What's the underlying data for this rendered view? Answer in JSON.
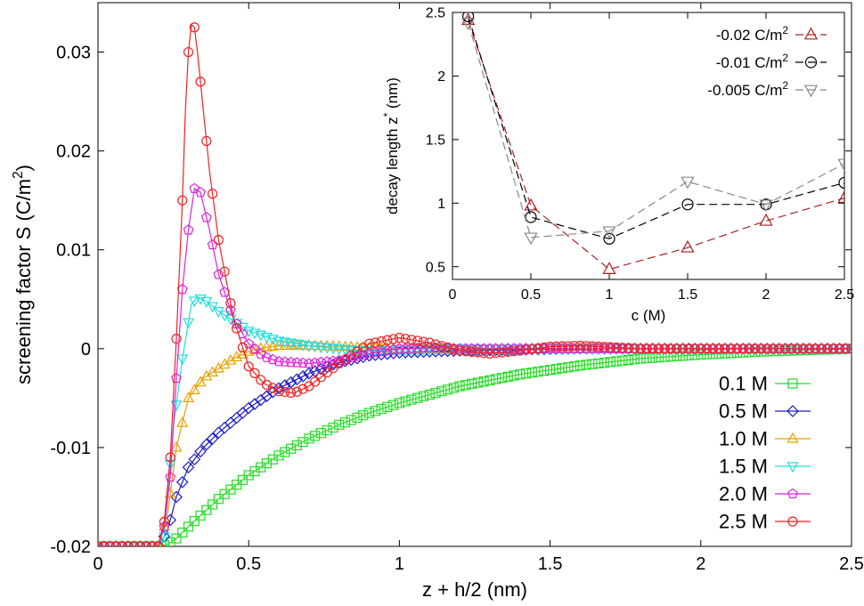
{
  "chart_data": [
    {
      "type": "line",
      "xlabel": "z + h/2 (nm)",
      "ylabel_main": "screening factor S (C/m",
      "ylabel_sup": "2",
      "ylabel_tail": ")",
      "xlim": [
        0,
        2.5
      ],
      "ylim": [
        -0.02,
        0.035
      ],
      "xticks": [
        0,
        0.5,
        1,
        1.5,
        2,
        2.5
      ],
      "xtick_labels": [
        "0",
        "0.5",
        "1",
        "1.5",
        "2",
        "2.5"
      ],
      "yticks": [
        -0.02,
        -0.01,
        0,
        0.01,
        0.02,
        0.03
      ],
      "ytick_labels": [
        "-0.02",
        "-0.01",
        "0",
        "0.01",
        "0.02",
        "0.03"
      ],
      "legend_position": "bottom-right",
      "series": [
        {
          "name": "0.1 M",
          "color": "#22dd22",
          "marker": "square",
          "x": [
            0,
            0.2,
            0.23,
            0.26,
            0.3,
            0.35,
            0.4,
            0.5,
            0.6,
            0.7,
            0.8,
            0.9,
            1.0,
            1.2,
            1.4,
            1.6,
            1.8,
            2.0,
            2.2,
            2.5
          ],
          "y": [
            -0.02,
            -0.02,
            -0.0198,
            -0.0192,
            -0.018,
            -0.0166,
            -0.0152,
            -0.0128,
            -0.0108,
            -0.0091,
            -0.0077,
            -0.0065,
            -0.0055,
            -0.0038,
            -0.0026,
            -0.0017,
            -0.001,
            -0.0006,
            -0.0003,
            0.0
          ]
        },
        {
          "name": "0.5 M",
          "color": "#1a1acc",
          "marker": "diamond",
          "x": [
            0,
            0.2,
            0.23,
            0.26,
            0.3,
            0.35,
            0.4,
            0.5,
            0.6,
            0.7,
            0.8,
            0.9,
            1.0,
            1.2,
            1.4,
            1.6,
            1.8,
            2.0,
            2.5
          ],
          "y": [
            -0.02,
            -0.02,
            -0.0185,
            -0.015,
            -0.012,
            -0.01,
            -0.0085,
            -0.006,
            -0.004,
            -0.0025,
            -0.0014,
            -0.0007,
            -0.0004,
            -0.0002,
            -0.0001,
            0.0,
            0.0,
            0.0,
            0.0
          ]
        },
        {
          "name": "1.0 M",
          "color": "#e8a000",
          "marker": "triangle-up",
          "x": [
            0,
            0.2,
            0.23,
            0.26,
            0.3,
            0.35,
            0.4,
            0.45,
            0.5,
            0.55,
            0.6,
            0.7,
            0.8,
            0.9,
            1.0,
            1.2,
            1.4,
            1.6,
            2.0,
            2.5
          ],
          "y": [
            -0.02,
            -0.02,
            -0.017,
            -0.01,
            -0.005,
            -0.003,
            -0.002,
            -0.001,
            -0.0003,
            0.0001,
            0.0003,
            0.0003,
            0.0002,
            0.0001,
            0.0,
            -0.0001,
            0.0,
            0.0,
            0.0,
            0.0
          ]
        },
        {
          "name": "1.5 M",
          "color": "#22dddd",
          "marker": "triangle-down",
          "x": [
            0,
            0.2,
            0.22,
            0.25,
            0.28,
            0.31,
            0.33,
            0.36,
            0.4,
            0.45,
            0.5,
            0.6,
            0.7,
            0.8,
            0.9,
            1.0,
            1.2,
            1.5,
            2.0,
            2.5
          ],
          "y": [
            -0.02,
            -0.02,
            -0.019,
            -0.008,
            -0.001,
            0.0045,
            0.0052,
            0.0048,
            0.0038,
            0.0028,
            0.0018,
            0.0008,
            0.0003,
            0.0,
            -0.0002,
            -0.0001,
            0.0,
            0.0,
            0.0,
            0.0
          ]
        },
        {
          "name": "2.0 M",
          "color": "#dd22dd",
          "marker": "pentagon",
          "x": [
            0,
            0.2,
            0.22,
            0.24,
            0.26,
            0.28,
            0.3,
            0.32,
            0.34,
            0.37,
            0.4,
            0.45,
            0.5,
            0.55,
            0.6,
            0.7,
            0.8,
            0.9,
            1.0,
            1.1,
            1.2,
            1.4,
            1.6,
            1.8,
            2.0,
            2.5
          ],
          "y": [
            -0.02,
            -0.02,
            -0.018,
            -0.013,
            -0.003,
            0.006,
            0.012,
            0.0162,
            0.0158,
            0.012,
            0.0075,
            0.003,
            0.0005,
            -0.0008,
            -0.0013,
            -0.0015,
            -0.0012,
            -0.0005,
            0.0,
            0.0001,
            0.0,
            0.0,
            0.0,
            0.0,
            0.0,
            0.0
          ]
        },
        {
          "name": "2.5 M",
          "color": "#ee2222",
          "marker": "circle",
          "x": [
            0,
            0.2,
            0.22,
            0.24,
            0.26,
            0.28,
            0.29,
            0.3,
            0.31,
            0.32,
            0.33,
            0.35,
            0.37,
            0.4,
            0.45,
            0.5,
            0.55,
            0.6,
            0.65,
            0.7,
            0.8,
            0.9,
            1.0,
            1.1,
            1.2,
            1.3,
            1.4,
            1.5,
            1.6,
            1.8,
            2.0,
            2.2,
            2.5
          ],
          "y": [
            -0.02,
            -0.02,
            -0.0175,
            -0.011,
            0.001,
            0.015,
            0.024,
            0.03,
            0.0328,
            0.0325,
            0.03,
            0.024,
            0.018,
            0.011,
            0.003,
            -0.0018,
            -0.0035,
            -0.0043,
            -0.0045,
            -0.0038,
            -0.0015,
            0.0005,
            0.0011,
            0.0006,
            -0.0002,
            -0.0005,
            -0.0002,
            0.0002,
            0.0003,
            0.0,
            0.0,
            0.0,
            0.0
          ]
        }
      ]
    },
    {
      "type": "line",
      "inset": true,
      "xlabel": "c (M)",
      "ylabel_main": "decay length z",
      "ylabel_sup": "*",
      "ylabel_tail": " (nm)",
      "xlim": [
        0,
        2.5
      ],
      "ylim": [
        0.4,
        2.5
      ],
      "xticks": [
        0,
        0.5,
        1,
        1.5,
        2,
        2.5
      ],
      "xtick_labels": [
        "0",
        "0.5",
        "1",
        "1.5",
        "2",
        "2.5"
      ],
      "yticks": [
        0.5,
        1,
        1.5,
        2,
        2.5
      ],
      "ytick_labels": [
        "0.5",
        "1",
        "1.5",
        "2",
        "2.5"
      ],
      "legend_position": "top-right",
      "series": [
        {
          "name": "-0.02 C/m",
          "sup": "2",
          "color": "#aa2222",
          "marker": "triangle-up",
          "x": [
            0.1,
            0.5,
            1.0,
            1.5,
            2.0,
            2.5
          ],
          "y": [
            2.44,
            0.98,
            0.48,
            0.65,
            0.86,
            1.04
          ]
        },
        {
          "name": "-0.01 C/m",
          "sup": "2",
          "color": "#000000",
          "marker": "circle",
          "x": [
            0.1,
            0.5,
            1.0,
            1.5,
            2.0,
            2.5
          ],
          "y": [
            2.47,
            0.89,
            0.72,
            0.99,
            0.99,
            1.16
          ]
        },
        {
          "name": "-0.005 C/m",
          "sup": "2",
          "color": "#888888",
          "marker": "triangle-down",
          "x": [
            0.1,
            0.5,
            1.0,
            1.5,
            2.0,
            2.5
          ],
          "y": [
            2.42,
            0.73,
            0.78,
            1.17,
            0.99,
            1.31
          ]
        }
      ]
    }
  ]
}
